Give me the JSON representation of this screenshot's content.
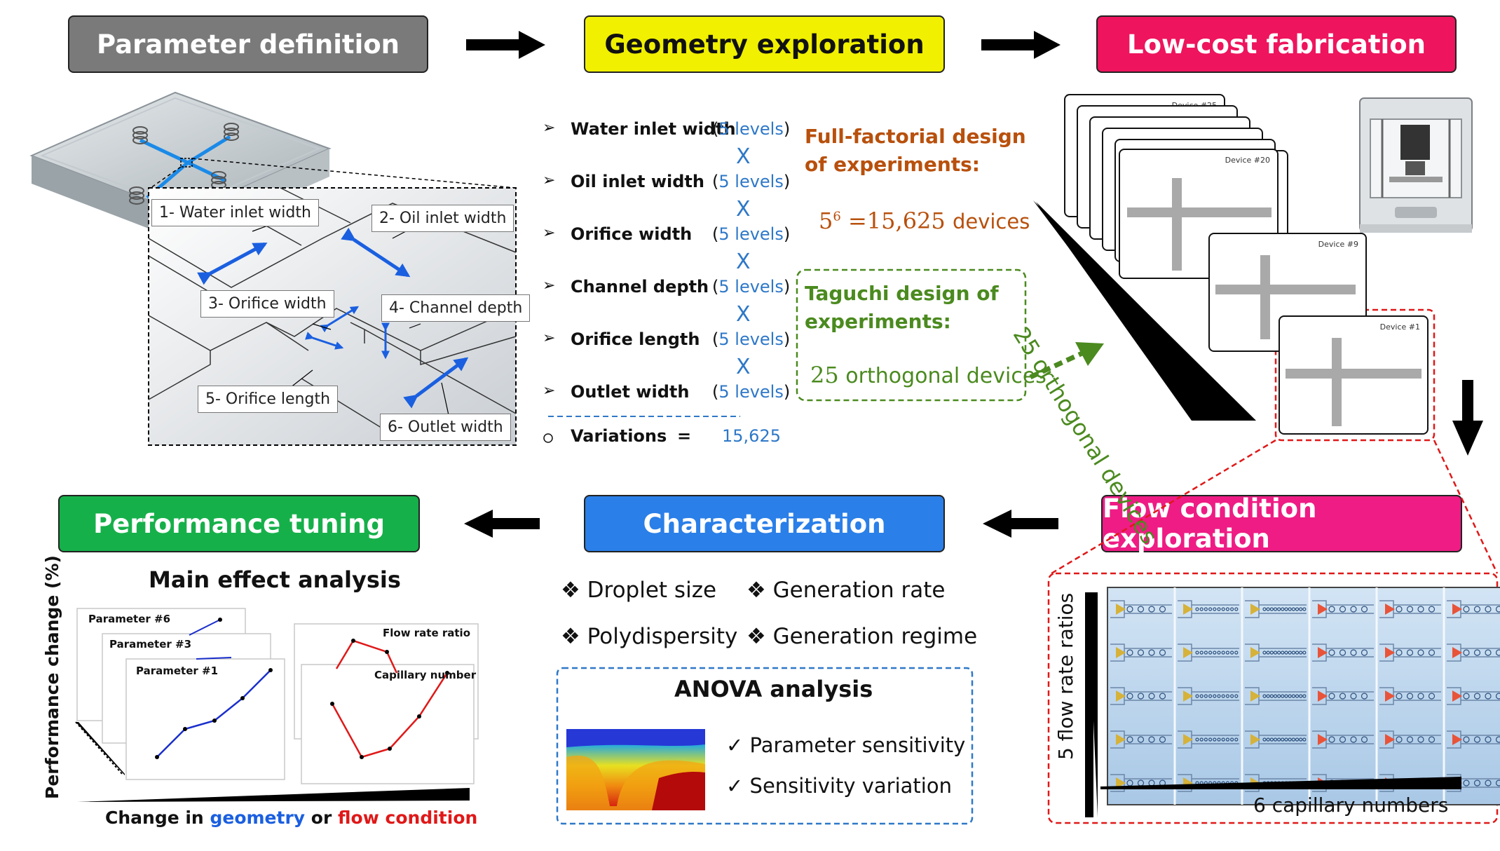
{
  "headers": {
    "parameter_definition": "Parameter definition",
    "geometry_exploration": "Geometry exploration",
    "low_cost_fabrication": "Low-cost fabrication",
    "performance_tuning": "Performance tuning",
    "characterization": "Characterization",
    "flow_condition_exploration": "Flow condition exploration"
  },
  "colors": {
    "gray": "#7a7a7a",
    "yellow": "#f0f000",
    "pink": "#ee145e",
    "green": "#16b04a",
    "blue": "#2a7fe8",
    "magenta": "#ee1c84",
    "level_blue": "#2e78c8",
    "ff_orange": "#b8500c",
    "taguchi_green": "#4b8a1f",
    "red": "#e01818"
  },
  "parameters": {
    "labels": [
      "1- Water inlet width",
      "2- Oil inlet width",
      "3- Orifice width",
      "4- Channel depth",
      "5- Orifice length",
      "6- Outlet width"
    ]
  },
  "geometry": {
    "items": [
      {
        "name": "Water inlet width",
        "levels": "5 levels"
      },
      {
        "name": "Oil inlet width",
        "levels": "5 levels"
      },
      {
        "name": "Orifice width",
        "levels": "5 levels"
      },
      {
        "name": "Channel depth",
        "levels": "5 levels"
      },
      {
        "name": "Orifice length",
        "levels": "5 levels"
      },
      {
        "name": "Outlet width",
        "levels": "5 levels"
      }
    ],
    "times_symbol": "X",
    "variations_label": "Variations",
    "equals": "=",
    "variations_value": "15,625",
    "full_factorial_line1": "Full-factorial design",
    "full_factorial_line2": "of experiments:",
    "ff_base": "5",
    "ff_exp": "6",
    "ff_value": "=15,625",
    "ff_unit": "devices",
    "taguchi_line1": "Taguchi design of",
    "taguchi_line2": "experiments:",
    "taguchi_count": "25",
    "taguchi_unit": "orthogonal devices"
  },
  "fabrication": {
    "device_labels": [
      "Device #25",
      "Device #20",
      "Device #9",
      "Device #1"
    ],
    "orthogonal_label": "25 orthogonal devices"
  },
  "characterization": {
    "items": [
      "Droplet size",
      "Generation rate",
      "Polydispersity",
      "Generation regime"
    ],
    "anova_title": "ANOVA analysis",
    "anova_items": [
      "Parameter sensitivity",
      "Sensitivity variation"
    ]
  },
  "performance": {
    "title": "Main effect analysis",
    "ylabel": "Performance change (%)",
    "xlabel_prefix": "Change in",
    "xlabel_geometry": "geometry",
    "xlabel_or": "or",
    "xlabel_flow": "flow condition",
    "panel_labels": [
      "Parameter #6",
      "Parameter #3",
      "Parameter #1",
      "Flow rate ratio",
      "Capillary number"
    ]
  },
  "flow": {
    "ylabel": "5 flow rate ratios",
    "xlabel": "6 capillary numbers"
  }
}
